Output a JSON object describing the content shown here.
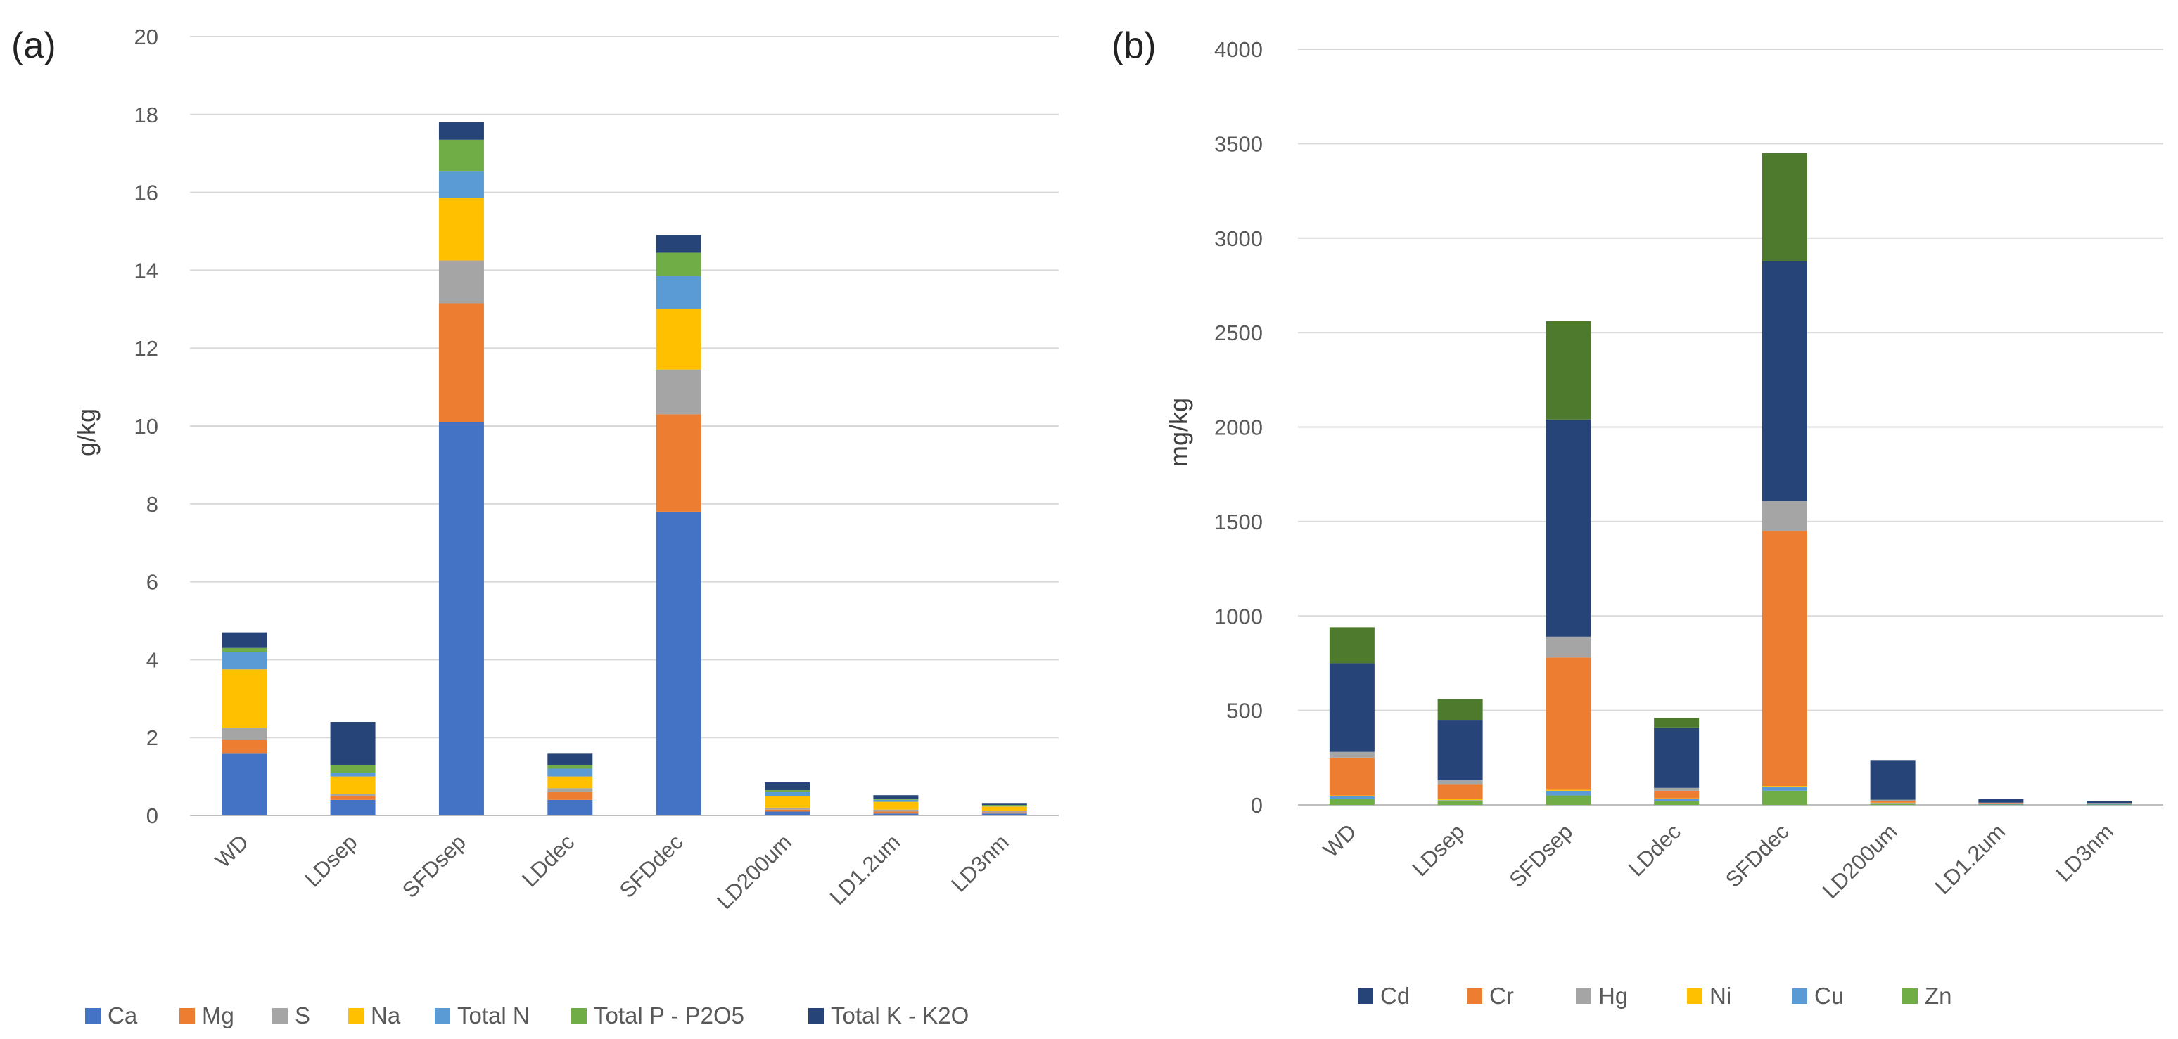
{
  "chart_data": [
    {
      "type": "bar",
      "stacked": true,
      "panel_label": "(a)",
      "ylabel": "g/kg",
      "xlabel": "",
      "ylim": [
        0,
        20
      ],
      "y_ticks": [
        0,
        2,
        4,
        6,
        8,
        10,
        12,
        14,
        16,
        18,
        20
      ],
      "grid": true,
      "legend_position": "bottom",
      "categories": [
        "WD",
        "LDsep",
        "SFDsep",
        "LDdec",
        "SFDdec",
        "LD200um",
        "LD1.2um",
        "LD3nm"
      ],
      "series": [
        {
          "name": "Ca",
          "color": "#4472C4",
          "values": [
            1.6,
            0.4,
            10.1,
            0.4,
            7.8,
            0.1,
            0.05,
            0.05
          ]
        },
        {
          "name": "Mg",
          "color": "#ED7D31",
          "values": [
            0.35,
            0.1,
            3.05,
            0.2,
            2.5,
            0.05,
            0.05,
            0.03
          ]
        },
        {
          "name": "S",
          "color": "#A5A5A5",
          "values": [
            0.3,
            0.05,
            1.1,
            0.1,
            1.15,
            0.05,
            0.05,
            0.03
          ]
        },
        {
          "name": "Na",
          "color": "#FFC000",
          "values": [
            1.5,
            0.45,
            1.6,
            0.3,
            1.55,
            0.3,
            0.2,
            0.12
          ]
        },
        {
          "name": "Total N",
          "color": "#5B9BD5",
          "values": [
            0.45,
            0.1,
            0.7,
            0.2,
            0.85,
            0.1,
            0.05,
            0.02
          ]
        },
        {
          "name": "Total P - P2O5",
          "color": "#70AD47",
          "values": [
            0.1,
            0.2,
            0.8,
            0.1,
            0.6,
            0.05,
            0.02,
            0.02
          ]
        },
        {
          "name": "Total K - K2O",
          "color": "#264478",
          "values": [
            0.4,
            1.1,
            0.45,
            0.3,
            0.45,
            0.2,
            0.1,
            0.05
          ]
        }
      ]
    },
    {
      "type": "bar",
      "stacked": true,
      "panel_label": "(b)",
      "ylabel": "mg/kg",
      "xlabel": "",
      "ylim": [
        0,
        4000
      ],
      "y_ticks": [
        0,
        500,
        1000,
        1500,
        2000,
        2500,
        3000,
        3500,
        4000
      ],
      "grid": true,
      "legend_position": "bottom",
      "categories": [
        "WD",
        "LDsep",
        "SFDsep",
        "LDdec",
        "SFDdec",
        "LD200um",
        "LD1.2um",
        "LD3nm"
      ],
      "series": [
        {
          "name": "Zn",
          "color": "#70AD47",
          "values": [
            30,
            20,
            50,
            20,
            75,
            5,
            2,
            2
          ]
        },
        {
          "name": "Cu",
          "color": "#5B9BD5",
          "values": [
            15,
            5,
            25,
            10,
            20,
            5,
            2,
            2
          ]
        },
        {
          "name": "Ni",
          "color": "#FFC000",
          "values": [
            5,
            5,
            5,
            5,
            5,
            2,
            1,
            1
          ]
        },
        {
          "name": "Cr",
          "color": "#ED7D31",
          "values": [
            200,
            80,
            700,
            40,
            1350,
            10,
            5,
            3
          ]
        },
        {
          "name": "Hg",
          "color": "#A5A5A5",
          "values": [
            30,
            20,
            110,
            15,
            160,
            5,
            2,
            2
          ]
        },
        {
          "name": "Cd",
          "color": "#264478",
          "values": [
            470,
            320,
            1150,
            320,
            1270,
            210,
            20,
            10
          ]
        },
        {
          "name": "",
          "color": "#4E7A2E",
          "values": [
            190,
            110,
            520,
            50,
            570,
            0,
            0,
            0
          ]
        }
      ],
      "legend_entries": [
        {
          "name": "Cd",
          "color": "#264478"
        },
        {
          "name": "Cr",
          "color": "#ED7D31"
        },
        {
          "name": "Hg",
          "color": "#A5A5A5"
        },
        {
          "name": "Ni",
          "color": "#FFC000"
        },
        {
          "name": "Cu",
          "color": "#5B9BD5"
        },
        {
          "name": "Zn",
          "color": "#70AD47"
        }
      ]
    }
  ]
}
